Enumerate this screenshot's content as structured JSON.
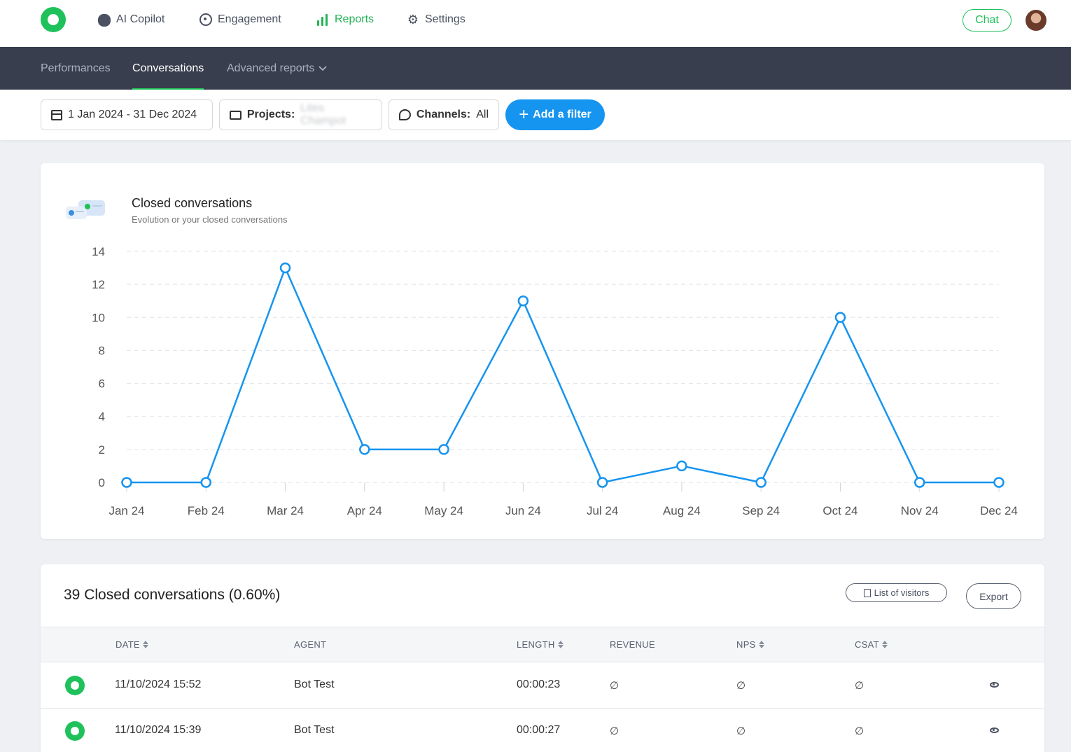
{
  "topnav": {
    "items": [
      {
        "label": "AI Copilot",
        "icon": "cloud-icon"
      },
      {
        "label": "Engagement",
        "icon": "target-icon"
      },
      {
        "label": "Reports",
        "icon": "bar-chart-icon",
        "active": true
      },
      {
        "label": "Settings",
        "icon": "gear-icon"
      }
    ],
    "chat_label": "Chat"
  },
  "subnav": {
    "tabs": [
      {
        "label": "Performances"
      },
      {
        "label": "Conversations",
        "active": true
      },
      {
        "label": "Advanced reports",
        "dropdown": true
      }
    ]
  },
  "filters": {
    "date_range": "1 Jan 2024 - 31 Dec 2024",
    "projects_label": "Projects:",
    "projects_value": "Lites Champot",
    "channels_label": "Channels:",
    "channels_value": "All",
    "add_filter_label": "Add a filter"
  },
  "chart": {
    "title": "Closed conversations",
    "subtitle": "Evolution or your closed conversations"
  },
  "chart_data": {
    "type": "line",
    "title": "Closed conversations",
    "subtitle": "Evolution or your closed conversations",
    "categories": [
      "Jan 24",
      "Feb 24",
      "Mar 24",
      "Apr 24",
      "May 24",
      "Jun 24",
      "Jul 24",
      "Aug 24",
      "Sep 24",
      "Oct 24",
      "Nov 24",
      "Dec 24"
    ],
    "series": [
      {
        "name": "Closed conversations",
        "values": [
          0,
          0,
          13,
          2,
          2,
          11,
          0,
          1,
          0,
          10,
          0,
          0
        ],
        "color": "#1594f0"
      }
    ],
    "yticks": [
      0,
      2,
      4,
      6,
      8,
      10,
      12,
      14
    ],
    "ylim": [
      0,
      14
    ],
    "grid": true
  },
  "table": {
    "title": "39 Closed conversations (0.60%)",
    "visitors_label": "List of visitors",
    "export_label": "Export",
    "columns": [
      "DATE",
      "AGENT",
      "LENGTH",
      "REVENUE",
      "NPS",
      "CSAT"
    ],
    "rows": [
      {
        "date": "11/10/2024 15:52",
        "agent": "Bot Test",
        "length": "00:00:23",
        "revenue": "∅",
        "nps": "∅",
        "csat": "∅"
      },
      {
        "date": "11/10/2024 15:39",
        "agent": "Bot Test",
        "length": "00:00:27",
        "revenue": "∅",
        "nps": "∅",
        "csat": "∅"
      }
    ]
  },
  "colors": {
    "brand": "#1ec15a",
    "accent": "#1594f0",
    "subnav_bg": "#383e4d"
  }
}
